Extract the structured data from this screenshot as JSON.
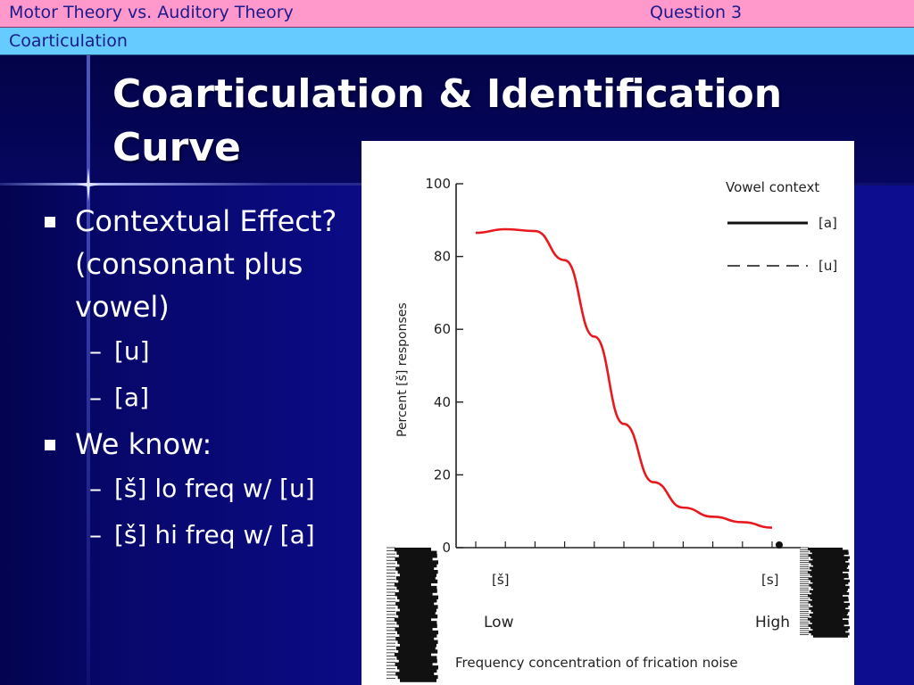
{
  "header": {
    "course_title": "Motor Theory vs. Auditory Theory",
    "question": "Question 3",
    "section": "Coarticulation"
  },
  "slide": {
    "title_line1": "Coarticulation & Identification",
    "title_line2": "Curve",
    "bullets": [
      {
        "lines": [
          "Contextual Effect?",
          "(consonant plus",
          "vowel)"
        ],
        "subs": [
          "[u]",
          "[a]"
        ]
      },
      {
        "lines": [
          "We know:"
        ],
        "subs": [
          "[š] lo freq w/ [u]",
          "[š] hi freq w/ [a]"
        ]
      }
    ],
    "dash": "–"
  },
  "colors": {
    "pink_bar": "#ff99cc",
    "blue_bar": "#66ccff",
    "background": "#0a0a7a",
    "curve": "#e8191e"
  },
  "chart_data": {
    "type": "line",
    "ylabel": "Percent [š] responses",
    "xlabel": "Frequency concentration of frication noise",
    "ylim": [
      0,
      100
    ],
    "yticks": [
      0,
      20,
      40,
      60,
      80,
      100
    ],
    "x_endpoint_labels": [
      "[š]",
      "[s]"
    ],
    "x_endpoint_sublabels": [
      "Low",
      "High"
    ],
    "legend": {
      "title": "Vowel context",
      "entries": [
        {
          "label": "[a]",
          "style": "solid"
        },
        {
          "label": "[u]",
          "style": "dashed"
        }
      ],
      "placement": "top-right"
    },
    "series": [
      {
        "name": "[a]",
        "x": [
          0.0,
          0.1,
          0.2,
          0.3,
          0.4,
          0.5,
          0.6,
          0.7,
          0.8,
          0.9,
          1.0
        ],
        "values": [
          86.5,
          87.5,
          87.0,
          79,
          58,
          34,
          18,
          11,
          8.5,
          7,
          5.5
        ]
      }
    ]
  }
}
